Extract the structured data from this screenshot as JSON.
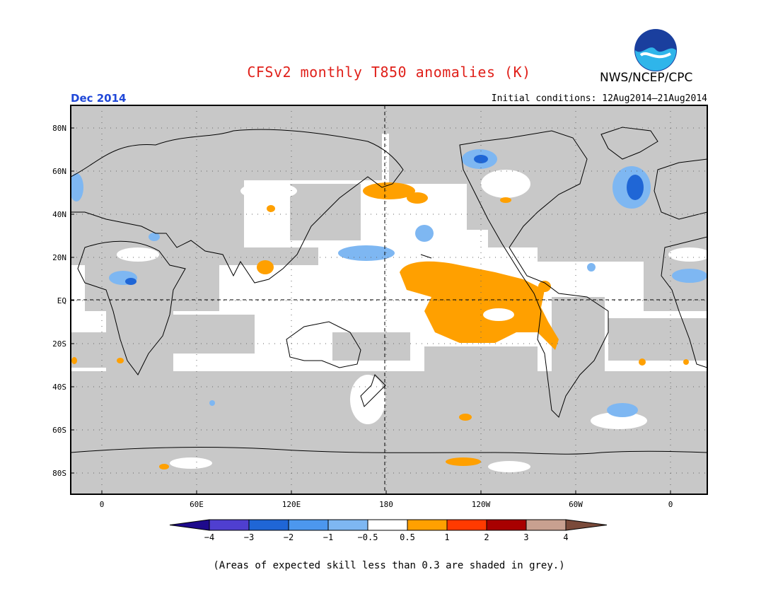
{
  "title": "CFSv2 monthly T850 anomalies (K)",
  "valid_month": "Dec 2014",
  "initial_conditions": "Initial conditions: 12Aug2014–21Aug2014",
  "agency": "NWS/NCEP/CPC",
  "logo_text": "NOAA",
  "footnote": "(Areas of expected skill less than 0.3 are shaded in grey.)",
  "projection": "cylindrical equidistant, central longitude 180",
  "lat_labels": [
    "80N",
    "60N",
    "40N",
    "20N",
    "EQ",
    "20S",
    "40S",
    "60S",
    "80S"
  ],
  "lon_labels": [
    "0",
    "60E",
    "120E",
    "180",
    "120W",
    "60W",
    "0"
  ],
  "colorbar": {
    "labels": [
      "−4",
      "−3",
      "−2",
      "−1",
      "−0.5",
      "0.5",
      "1",
      "2",
      "3",
      "4"
    ],
    "colors": [
      "#1e0a8c",
      "#4f3fd0",
      "#1f66d6",
      "#4c97ee",
      "#7eb7f2",
      "#ffffff",
      "#ffa000",
      "#ff3a00",
      "#a80000",
      "#c8a090",
      "#7a4a3a"
    ]
  },
  "colors": {
    "title": "#e0201a",
    "valid_month": "#2048d8",
    "low_skill_grey": "#c8c8c8",
    "warm_anomaly": "#ffa000",
    "cool_anomaly": "#4c97ee",
    "cool_anomaly_dark": "#1f66d6"
  }
}
